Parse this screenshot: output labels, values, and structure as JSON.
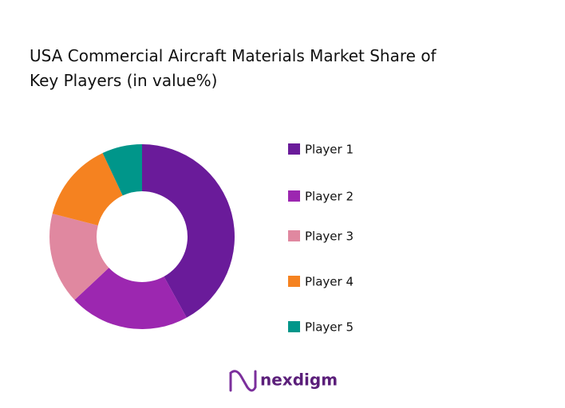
{
  "chart_data": {
    "type": "donut",
    "title_lines": [
      "USA Commercial Aircraft Materials Market Share of",
      "Key Players (in value%)"
    ],
    "categories": [
      "Player 1",
      "Player 2",
      "Player 3",
      "Player 4",
      "Player 5"
    ],
    "values": [
      42,
      21,
      16,
      14,
      7
    ],
    "colors": [
      "#6a1b9a",
      "#9c27b0",
      "#e088a0",
      "#f58220",
      "#00968a"
    ],
    "legend": "right"
  },
  "brand": "nexdigm"
}
